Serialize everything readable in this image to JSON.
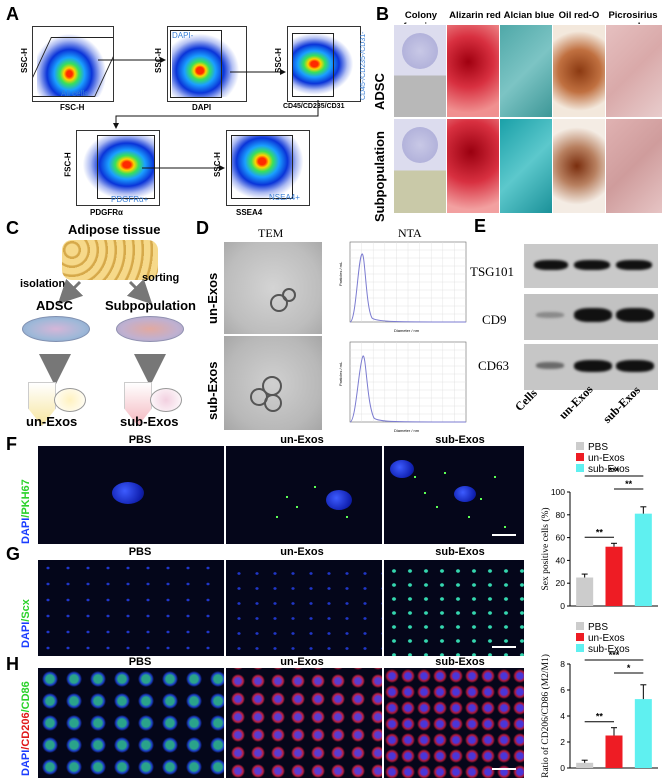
{
  "panels": {
    "A": "A",
    "B": "B",
    "C": "C",
    "D": "D",
    "E": "E",
    "F": "F",
    "G": "G",
    "H": "H"
  },
  "panelA": {
    "plots": [
      {
        "y_label": "SSC-H",
        "x_label": "FSC-H",
        "gate_label": "All cells"
      },
      {
        "y_label": "SSC-H",
        "x_label": "DAPI",
        "gate_label": "DAPI-"
      },
      {
        "y_label": "SSC-H",
        "x_label": "CD45/CD235/CD31",
        "gate_label": "CD45-/CD235-/CD31-"
      },
      {
        "y_label": "FSC-H",
        "x_label": "PDGFRα",
        "gate_label": "PDGFRα+"
      },
      {
        "y_label": "SSC-H",
        "x_label": "SSEA4",
        "gate_label": "NSEA4+"
      }
    ]
  },
  "panelB": {
    "columns": [
      "Colony forming",
      "Alizarin red",
      "Alcian blue",
      "Oil red-O",
      "Picrosirius red"
    ],
    "rows": [
      "ADSC",
      "Subpopulation"
    ]
  },
  "panelC": {
    "top": "Adipose tissue",
    "left_arrow": "isolation",
    "right_arrow": "sorting",
    "left_node": "ADSC",
    "right_node": "Subpopulation",
    "left_bottom": "un-Exos",
    "right_bottom": "sub-Exos"
  },
  "panelD": {
    "col_tem": "TEM",
    "col_nta": "NTA",
    "rows": [
      "un-Exos",
      "sub-Exos"
    ],
    "nta_xlabel": "Diameter / nm",
    "nta_ylabel": "Particles / mL",
    "nta_xticks": [
      "0",
      "100",
      "200",
      "300",
      "400",
      "500",
      "600",
      "700",
      "800",
      "900",
      "1000"
    ],
    "nta_yticks": [
      "0.0E+00",
      "5.0E+06",
      "1.0E+07",
      "1.5E+07",
      "2.0E+07",
      "2.5E+07",
      "3.0E+07",
      "3.5E+07",
      "4.0E+07",
      "4.5E+07"
    ]
  },
  "panelE": {
    "bands": [
      "TSG101",
      "CD9",
      "CD63"
    ],
    "lanes": [
      "Cells",
      "un-Exos",
      "sub-Exos"
    ]
  },
  "panelF": {
    "cols": [
      "PBS",
      "un-Exos",
      "sub-Exos"
    ],
    "side_a": "DAPI",
    "side_b": "/PKH67"
  },
  "panelG": {
    "cols": [
      "PBS",
      "un-Exos",
      "sub-Exos"
    ],
    "side_a": "DAPI",
    "side_b": "/Scx"
  },
  "panelH": {
    "cols": [
      "PBS",
      "un-Exos",
      "sub-Exos"
    ],
    "side_a": "DAPI",
    "side_b": "/CD206",
    "side_c": "/CD86"
  },
  "colors": {
    "PBS": "#cccccc",
    "un-Exos": "#ee1c24",
    "sub-Exos": "#5ff0f0"
  },
  "chart_data": [
    {
      "type": "bar",
      "categories": [
        "PBS",
        "un-Exos",
        "sub-Exos"
      ],
      "values": [
        25,
        52,
        81
      ],
      "errors": [
        3,
        3,
        6
      ],
      "legend": [
        "PBS",
        "un-Exos",
        "sub-Exos"
      ],
      "ylabel": "Sex positive cells (%)",
      "ylim": [
        0,
        100
      ],
      "yticks": [
        "0",
        "20",
        "40",
        "60",
        "80",
        "100"
      ],
      "significance": [
        {
          "pair": [
            "PBS",
            "un-Exos"
          ],
          "label": "**"
        },
        {
          "pair": [
            "un-Exos",
            "sub-Exos"
          ],
          "label": "**"
        },
        {
          "pair": [
            "PBS",
            "sub-Exos"
          ],
          "label": "***"
        }
      ]
    },
    {
      "type": "bar",
      "categories": [
        "PBS",
        "un-Exos",
        "sub-Exos"
      ],
      "values": [
        0.4,
        2.5,
        5.3
      ],
      "errors": [
        0.2,
        0.6,
        1.1
      ],
      "legend": [
        "PBS",
        "un-Exos",
        "sub-Exos"
      ],
      "ylabel": "Ratio of CD206/CD86 (M2/M1)",
      "ylim": [
        0,
        8
      ],
      "yticks": [
        "0",
        "2",
        "4",
        "6",
        "8"
      ],
      "significance": [
        {
          "pair": [
            "PBS",
            "un-Exos"
          ],
          "label": "**"
        },
        {
          "pair": [
            "un-Exos",
            "sub-Exos"
          ],
          "label": "*"
        },
        {
          "pair": [
            "PBS",
            "sub-Exos"
          ],
          "label": "***"
        }
      ]
    }
  ]
}
